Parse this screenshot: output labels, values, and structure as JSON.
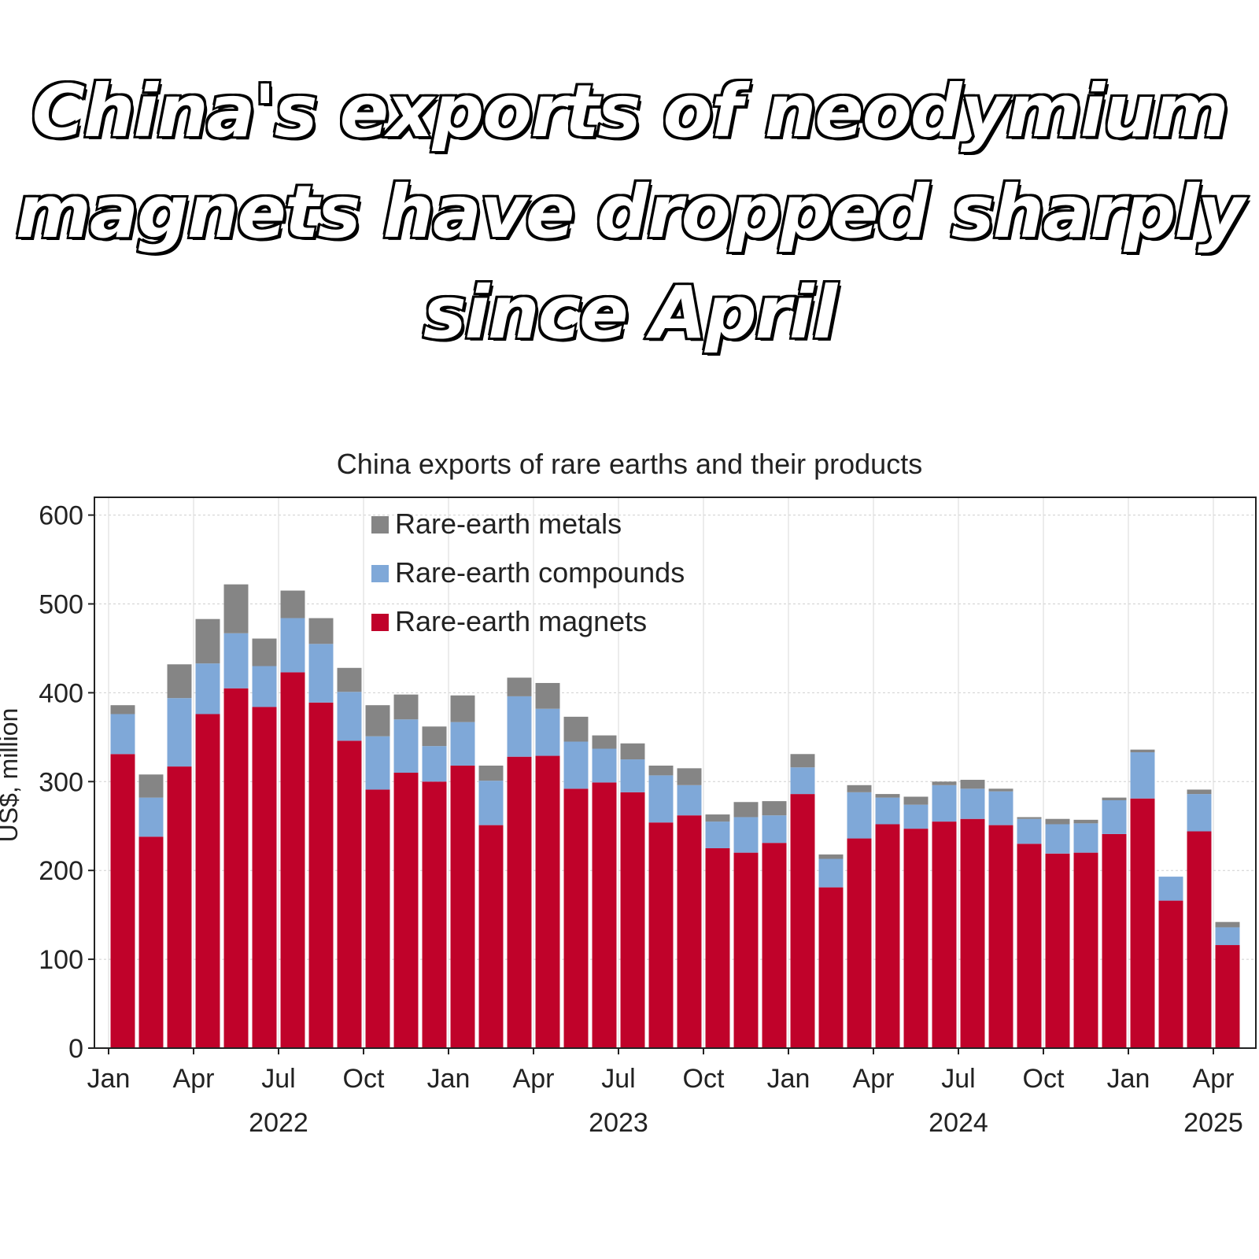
{
  "headline": {
    "line1": "China's exports of neodymium",
    "line2": "magnets have dropped sharply",
    "line3": "since April"
  },
  "chart_data": {
    "type": "bar",
    "stacked": true,
    "title": "China exports of rare earths and their products",
    "ylabel": "US$, million",
    "xlabel": "",
    "ylim": [
      0,
      620
    ],
    "yticks": [
      0,
      100,
      200,
      300,
      400,
      500,
      600
    ],
    "grid": true,
    "legend_position": "top-left",
    "categories": [
      "2022-01",
      "2022-02",
      "2022-03",
      "2022-04",
      "2022-05",
      "2022-06",
      "2022-07",
      "2022-08",
      "2022-09",
      "2022-10",
      "2022-11",
      "2022-12",
      "2023-01",
      "2023-02",
      "2023-03",
      "2023-04",
      "2023-05",
      "2023-06",
      "2023-07",
      "2023-08",
      "2023-09",
      "2023-10",
      "2023-11",
      "2023-12",
      "2024-01",
      "2024-02",
      "2024-03",
      "2024-04",
      "2024-05",
      "2024-06",
      "2024-07",
      "2024-08",
      "2024-09",
      "2024-10",
      "2024-11",
      "2024-12",
      "2025-01",
      "2025-02",
      "2025-03",
      "2025-04"
    ],
    "x_tick_labels": [
      {
        "index": 0,
        "label": "Jan"
      },
      {
        "index": 3,
        "label": "Apr"
      },
      {
        "index": 6,
        "label": "Jul"
      },
      {
        "index": 9,
        "label": "Oct"
      },
      {
        "index": 12,
        "label": "Jan"
      },
      {
        "index": 15,
        "label": "Apr"
      },
      {
        "index": 18,
        "label": "Jul"
      },
      {
        "index": 21,
        "label": "Oct"
      },
      {
        "index": 24,
        "label": "Jan"
      },
      {
        "index": 27,
        "label": "Apr"
      },
      {
        "index": 30,
        "label": "Jul"
      },
      {
        "index": 33,
        "label": "Oct"
      },
      {
        "index": 36,
        "label": "Jan"
      },
      {
        "index": 39,
        "label": "Apr"
      }
    ],
    "year_labels": [
      {
        "index": 6,
        "label": "2022"
      },
      {
        "index": 18,
        "label": "2023"
      },
      {
        "index": 30,
        "label": "2024"
      },
      {
        "index": 39,
        "label": "2025"
      }
    ],
    "series": [
      {
        "name": "Rare-earth magnets",
        "color": "#c0022a",
        "values": [
          331,
          238,
          317,
          376,
          405,
          384,
          423,
          389,
          346,
          291,
          310,
          300,
          318,
          251,
          328,
          329,
          292,
          299,
          288,
          254,
          262,
          225,
          220,
          231,
          286,
          181,
          236,
          252,
          247,
          255,
          258,
          251,
          230,
          219,
          220,
          241,
          281,
          166,
          244,
          116
        ]
      },
      {
        "name": "Rare-earth compounds",
        "color": "#7fa8d8",
        "values": [
          45,
          44,
          77,
          57,
          62,
          46,
          61,
          66,
          55,
          60,
          60,
          40,
          49,
          50,
          68,
          53,
          53,
          38,
          37,
          53,
          34,
          30,
          40,
          31,
          30,
          32,
          52,
          30,
          27,
          41,
          34,
          38,
          28,
          33,
          33,
          38,
          52,
          27,
          42,
          20
        ]
      },
      {
        "name": "Rare-earth metals",
        "color": "#858585",
        "values": [
          10,
          26,
          38,
          50,
          55,
          31,
          31,
          29,
          27,
          35,
          28,
          22,
          30,
          17,
          21,
          29,
          28,
          15,
          18,
          11,
          19,
          8,
          17,
          16,
          15,
          5,
          8,
          4,
          9,
          4,
          10,
          3,
          2,
          6,
          4,
          3,
          3,
          0,
          5,
          6
        ]
      }
    ]
  }
}
